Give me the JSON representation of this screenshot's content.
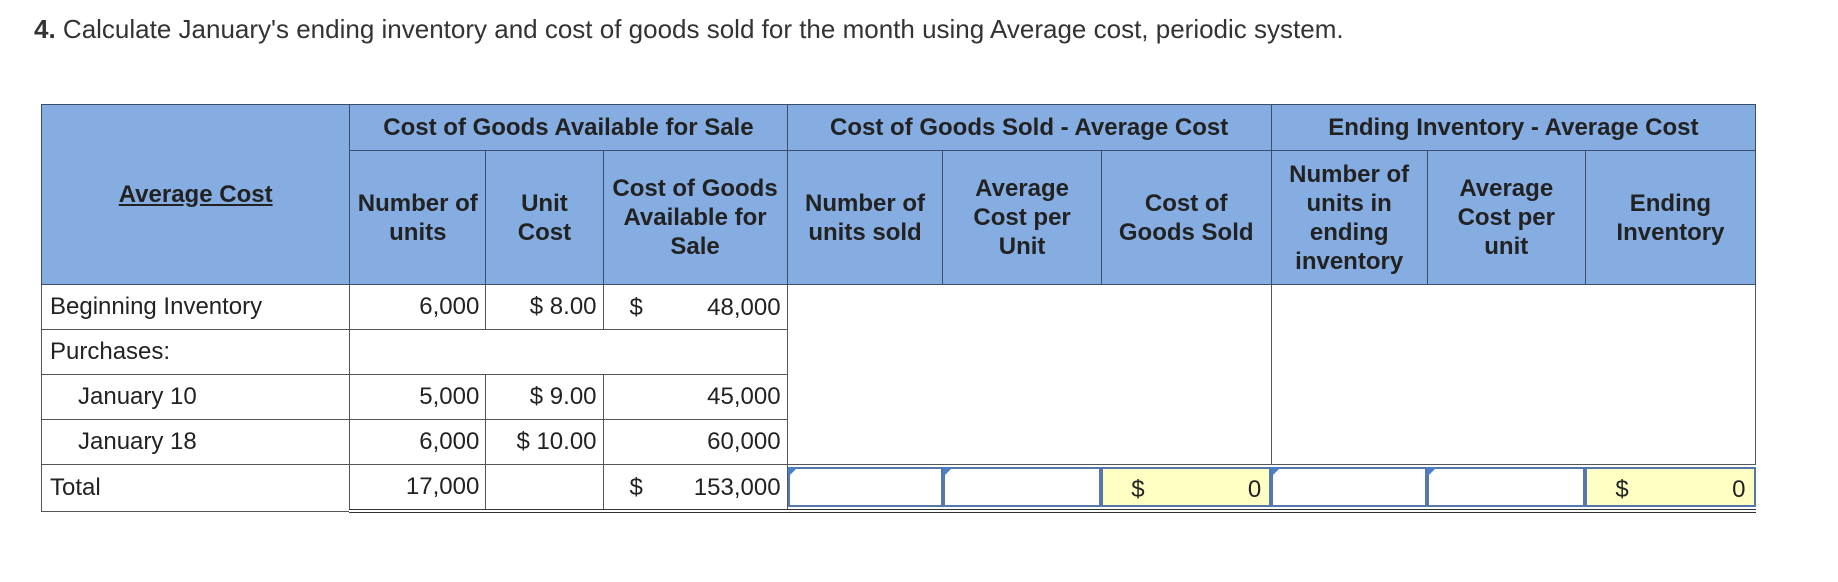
{
  "question": {
    "number": "4.",
    "text": "Calculate January's ending inventory and cost of goods sold for the month using Average cost, periodic system."
  },
  "table": {
    "corner_label": "Average Cost",
    "group_headers": {
      "available": "Cost of Goods Available for Sale",
      "cogs": "Cost of Goods Sold - Average Cost",
      "ending": "Ending Inventory - Average Cost"
    },
    "sub_headers": {
      "number_of_units": "Number of units",
      "unit_cost": "Unit Cost",
      "cost_available": "Cost of Goods Available for Sale",
      "units_sold": "Number of units sold",
      "avg_cost_per_unit": "Average Cost per Unit",
      "cost_of_goods_sold": "Cost of Goods Sold",
      "units_in_ending": "Number of units in ending inventory",
      "avg_cost_per_unit_lower": "Average Cost per unit",
      "ending_inventory": "Ending Inventory"
    },
    "rows": {
      "beginning": {
        "label": "Beginning Inventory",
        "units": "6,000",
        "unit_cost": "$ 8.00",
        "cost_currency": "$",
        "cost": "48,000"
      },
      "purchases": {
        "label": "Purchases:"
      },
      "jan10": {
        "label": "January 10",
        "units": "5,000",
        "unit_cost": "$ 9.00",
        "cost": "45,000"
      },
      "jan18": {
        "label": "January 18",
        "units": "6,000",
        "unit_cost": "$ 10.00",
        "cost": "60,000"
      },
      "total": {
        "label": "Total",
        "units": "17,000",
        "cost_currency": "$",
        "cost": "153,000",
        "cogs_currency": "$",
        "cogs_value": "0",
        "ending_currency": "$",
        "ending_value": "0"
      }
    }
  }
}
